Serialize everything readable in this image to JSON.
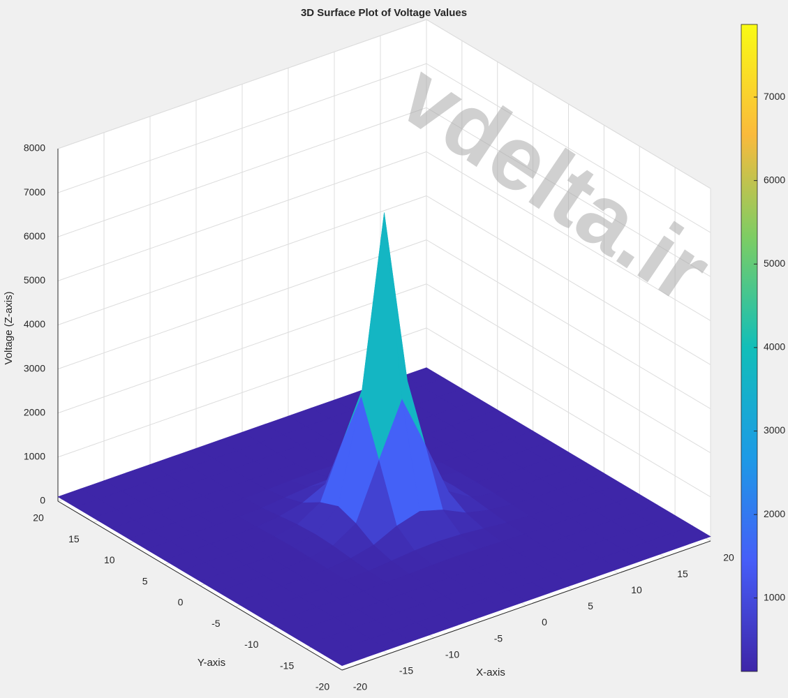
{
  "chart_data": {
    "type": "surface",
    "title": "3D Surface Plot of Voltage Values",
    "xlabel": "X-axis",
    "ylabel": "Y-axis",
    "zlabel": "Voltage (Z-axis)",
    "watermark": "vdelta.ir",
    "colormap": "parula",
    "x": [
      -20,
      -17.5,
      -15,
      -12.5,
      -10,
      -7.5,
      -5,
      -2.5,
      0,
      2.5,
      5,
      7.5,
      10,
      12.5,
      15,
      17.5,
      20
    ],
    "y": [
      -20,
      -17.5,
      -15,
      -12.5,
      -10,
      -7.5,
      -5,
      -2.5,
      0,
      2.5,
      5,
      7.5,
      10,
      12.5,
      15,
      17.5,
      20
    ],
    "z": [
      [
        100,
        100,
        100,
        100,
        100,
        100,
        100,
        100,
        100,
        100,
        100,
        100,
        100,
        100,
        100,
        100,
        100
      ],
      [
        100,
        100,
        100,
        100,
        100,
        100,
        100,
        100,
        100,
        100,
        100,
        100,
        100,
        100,
        100,
        100,
        100
      ],
      [
        100,
        100,
        100,
        100,
        100,
        100,
        100,
        100,
        100,
        100,
        100,
        100,
        100,
        100,
        100,
        100,
        100
      ],
      [
        100,
        100,
        100,
        100,
        100,
        100,
        100,
        100,
        100,
        100,
        100,
        100,
        100,
        100,
        100,
        100,
        100
      ],
      [
        100,
        100,
        100,
        100,
        100,
        110,
        120,
        140,
        150,
        140,
        120,
        110,
        100,
        100,
        100,
        100,
        100
      ],
      [
        100,
        100,
        100,
        100,
        110,
        130,
        180,
        230,
        250,
        230,
        180,
        130,
        110,
        100,
        100,
        100,
        100
      ],
      [
        100,
        100,
        100,
        100,
        120,
        180,
        300,
        550,
        700,
        550,
        300,
        180,
        120,
        100,
        100,
        100,
        100
      ],
      [
        100,
        100,
        100,
        100,
        140,
        230,
        550,
        1800,
        3000,
        1800,
        550,
        230,
        140,
        100,
        100,
        100,
        100
      ],
      [
        100,
        100,
        100,
        100,
        150,
        250,
        700,
        3000,
        7000,
        3000,
        700,
        250,
        150,
        100,
        100,
        100,
        100
      ],
      [
        100,
        100,
        100,
        100,
        140,
        230,
        550,
        1800,
        3000,
        1800,
        550,
        230,
        140,
        100,
        100,
        100,
        100
      ],
      [
        100,
        100,
        100,
        100,
        120,
        180,
        300,
        550,
        700,
        550,
        300,
        180,
        120,
        100,
        100,
        100,
        100
      ],
      [
        100,
        100,
        100,
        100,
        110,
        130,
        180,
        230,
        250,
        230,
        180,
        130,
        110,
        100,
        100,
        100,
        100
      ],
      [
        100,
        100,
        100,
        100,
        100,
        110,
        120,
        140,
        150,
        140,
        120,
        110,
        100,
        100,
        100,
        100,
        100
      ],
      [
        100,
        100,
        100,
        100,
        100,
        100,
        100,
        100,
        100,
        100,
        100,
        100,
        100,
        100,
        100,
        100,
        100
      ],
      [
        100,
        100,
        100,
        100,
        100,
        100,
        100,
        100,
        100,
        100,
        100,
        100,
        100,
        100,
        100,
        100,
        100
      ],
      [
        100,
        100,
        100,
        100,
        100,
        100,
        100,
        100,
        100,
        100,
        100,
        100,
        100,
        100,
        100,
        100,
        100
      ],
      [
        100,
        100,
        100,
        100,
        100,
        100,
        100,
        100,
        100,
        100,
        100,
        100,
        100,
        100,
        100,
        100,
        100
      ]
    ],
    "xlim": [
      -20,
      20
    ],
    "ylim": [
      -20,
      20
    ],
    "zlim": [
      0,
      8000
    ],
    "xticks": [
      -20,
      -15,
      -10,
      -5,
      0,
      5,
      10,
      15,
      20
    ],
    "yticks": [
      -20,
      -15,
      -10,
      -5,
      0,
      5,
      10,
      15,
      20
    ],
    "zticks": [
      0,
      1000,
      2000,
      3000,
      4000,
      5000,
      6000,
      7000,
      8000
    ],
    "clim": [
      120,
      7870
    ],
    "cticks": [
      1000,
      2000,
      3000,
      4000,
      5000,
      6000,
      7000
    ],
    "grid": true
  }
}
